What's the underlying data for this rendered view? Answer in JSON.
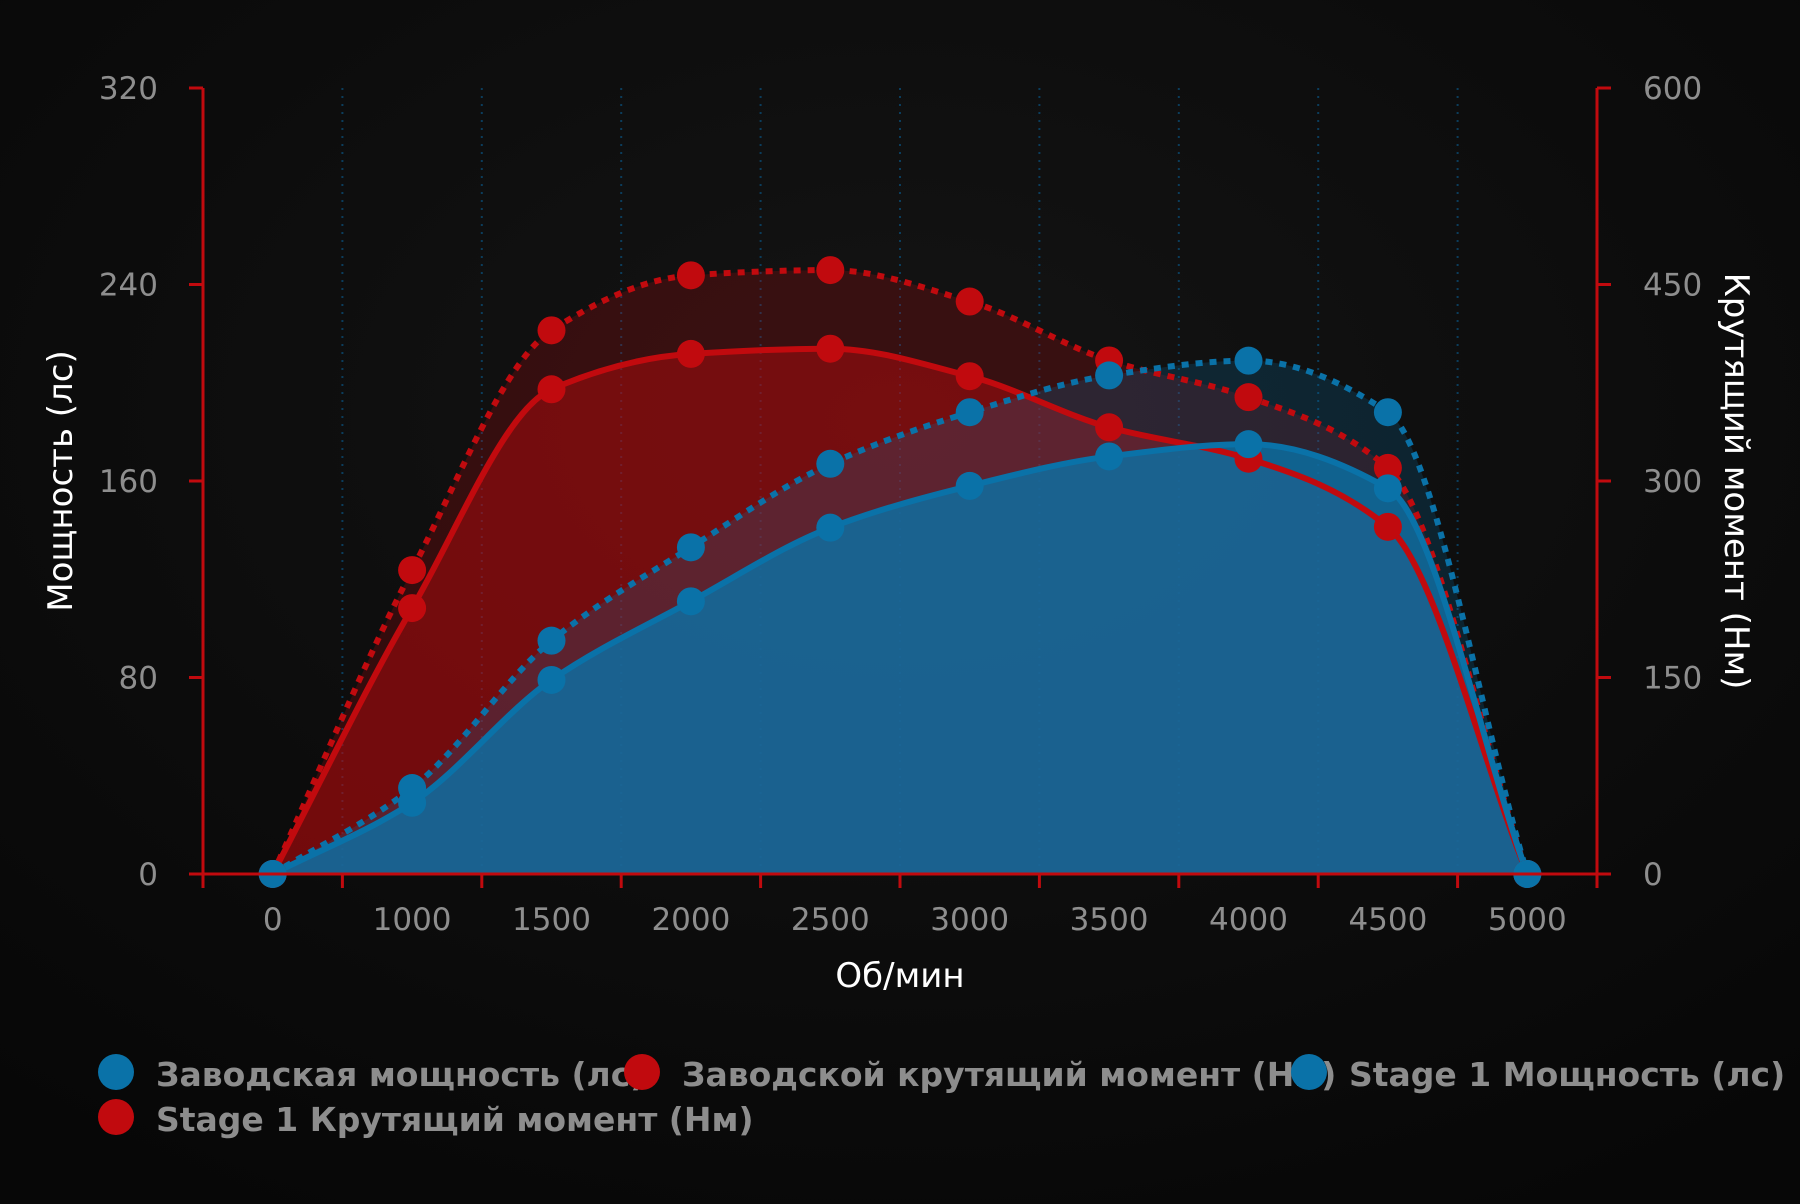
{
  "chart_data": {
    "type": "line",
    "xlabel": "Об/мин",
    "ylabel": "Мощность (лс)",
    "y2label": "Крутящий момент (Нм)",
    "x_ticks": [
      0,
      1000,
      1500,
      2000,
      2500,
      3000,
      3500,
      4000,
      4500,
      5000
    ],
    "ylim": [
      0,
      320
    ],
    "yticks": [
      0,
      80,
      160,
      240,
      320
    ],
    "y2lim": [
      0,
      600
    ],
    "y2ticks": [
      0,
      150,
      300,
      450,
      600
    ],
    "grid": "vertical dotted",
    "legend_position": "bottom",
    "series": [
      {
        "name": "Заводская мощность (лс)",
        "axis": "left",
        "color": "#0a72a8",
        "style": "solid",
        "values": [
          0,
          29,
          79,
          111,
          141,
          158,
          170,
          175,
          157,
          0
        ]
      },
      {
        "name": "Заводской крутящий момент (Нм)",
        "axis": "right",
        "color": "#c10a0e",
        "style": "solid",
        "values": [
          0,
          203,
          370,
          397,
          401,
          380,
          341,
          317,
          265,
          0
        ]
      },
      {
        "name": "Stage 1 Мощность (лс)",
        "axis": "left",
        "color": "#0a72a8",
        "style": "dotted",
        "values": [
          0,
          35,
          95,
          133,
          167,
          188,
          203,
          209,
          188,
          0
        ]
      },
      {
        "name": "Stage 1 Крутящий момент (Нм)",
        "axis": "right",
        "color": "#c10a0e",
        "style": "dotted",
        "values": [
          0,
          232,
          415,
          457,
          461,
          437,
          392,
          364,
          310,
          0
        ]
      }
    ]
  }
}
